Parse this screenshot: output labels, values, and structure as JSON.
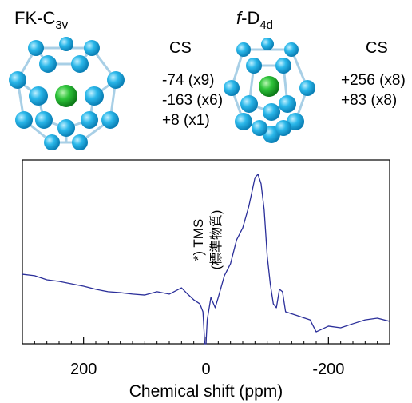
{
  "molecules": [
    {
      "title": {
        "prefix": "",
        "main": "FK-C",
        "sub": "3v"
      },
      "cs_header": "CS",
      "cs": [
        "-74 (x9)",
        "-163 (x6)",
        "+8 (x1)"
      ]
    },
    {
      "title": {
        "prefix": "f",
        "main": "-D",
        "sub": "4d"
      },
      "cs_header": "CS",
      "cs": [
        "+256 (x8)",
        "+83 (x8)"
      ]
    }
  ],
  "chart_data": {
    "type": "line",
    "x_label": "Chemical shift (ppm)",
    "annotations": [
      "*) TMS",
      "(標準物質)"
    ],
    "color": "#2b2f9a",
    "xlim": [
      300,
      -300
    ],
    "ylim": [
      0,
      100
    ],
    "xticks": [
      200,
      0,
      -200
    ],
    "xminorticks": [
      300,
      280,
      260,
      240,
      220,
      180,
      160,
      140,
      120,
      100,
      80,
      60,
      40,
      20,
      -20,
      -40,
      -60,
      -80,
      -100,
      -120,
      -140,
      -160,
      -180,
      -220,
      -240,
      -260,
      -280,
      -300
    ],
    "x": [
      300,
      280,
      260,
      240,
      220,
      200,
      180,
      160,
      140,
      120,
      100,
      80,
      60,
      40,
      30,
      20,
      10,
      5,
      2,
      0,
      -2,
      -8,
      -15,
      -20,
      -30,
      -40,
      -50,
      -60,
      -70,
      -80,
      -85,
      -90,
      -95,
      -100,
      -105,
      -110,
      -115,
      -120,
      -125,
      -130,
      -150,
      -170,
      -180,
      -200,
      -220,
      -240,
      -260,
      -280,
      -300
    ],
    "values": [
      37.8,
      37.0,
      34.8,
      33.9,
      32.6,
      31.3,
      29.6,
      28.3,
      27.8,
      27.0,
      26.5,
      28.3,
      27.0,
      30.4,
      27.0,
      23.9,
      21.7,
      17.4,
      0,
      0,
      13.0,
      25.2,
      19.6,
      25.2,
      37.0,
      43.5,
      56.5,
      63.0,
      74.8,
      90.4,
      92.2,
      87.0,
      73.0,
      47.8,
      32.6,
      21.7,
      19.6,
      29.6,
      28.3,
      17.4,
      15.2,
      13.0,
      6.5,
      9.6,
      8.7,
      10.9,
      13.0,
      13.9,
      12.2
    ]
  }
}
